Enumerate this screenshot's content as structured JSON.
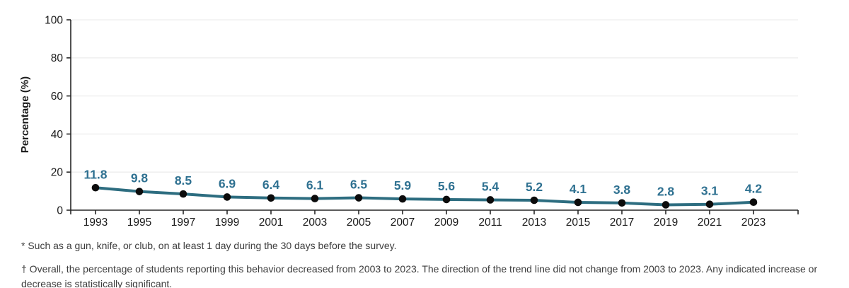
{
  "chart_data": {
    "type": "line",
    "title": "",
    "categories": [
      "1993",
      "1995",
      "1997",
      "1999",
      "2001",
      "2003",
      "2005",
      "2007",
      "2009",
      "2011",
      "2013",
      "2015",
      "2017",
      "2019",
      "2021",
      "2023"
    ],
    "values": [
      11.8,
      9.8,
      8.5,
      6.9,
      6.4,
      6.1,
      6.5,
      5.9,
      5.6,
      5.4,
      5.2,
      4.1,
      3.8,
      2.8,
      3.1,
      4.2
    ],
    "data_labels": [
      "11.8",
      "9.8",
      "8.5",
      "6.9",
      "6.4",
      "6.1",
      "6.5",
      "5.9",
      "5.6",
      "5.4",
      "5.2",
      "4.1",
      "3.8",
      "2.8",
      "3.1",
      "4.2"
    ],
    "xlabel": "",
    "ylabel": "Percentage (%)",
    "ylim": [
      0,
      100
    ],
    "yticks": [
      0,
      20,
      40,
      60,
      80,
      100
    ],
    "grid": "horizontal",
    "legend": "none",
    "colors": {
      "line": "#2d6d80",
      "marker": "#0c0c0c",
      "data_label": "#2f7191",
      "axis": "#262626",
      "gridline": "#ededed",
      "tick_label": "#1a1a1a"
    }
  },
  "footnotes": {
    "note1": "* Such as a gun, knife, or club, on at least 1 day during the 30 days before the survey.",
    "note2": "† Overall, the percentage of students reporting this behavior decreased from 2003 to 2023. The direction of the trend line did not change from 2003 to 2023. Any indicated increase or decrease is statistically significant."
  }
}
